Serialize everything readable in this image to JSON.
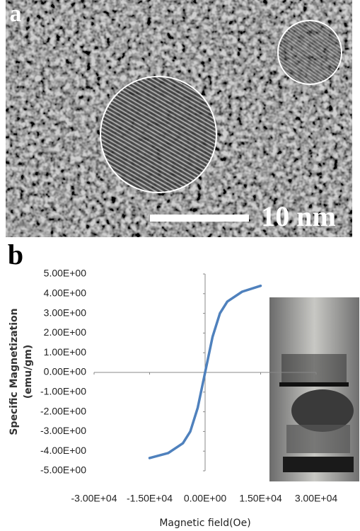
{
  "panel_labels": [
    "a",
    "b"
  ],
  "scale_bar": "10 nm",
  "chart_data": {
    "type": "line",
    "y_label": [
      "Specific Magnetization",
      "(emu/gm)"
    ],
    "x_label": "Magnetic field(Oe)",
    "x": [
      -15000,
      -10000,
      -6000,
      -4000,
      -2000,
      0,
      2000,
      4000,
      6000,
      10000,
      15000
    ],
    "series": [
      {
        "color": "#4f81bd",
        "values": [
          -4.35,
          -4.1,
          -3.6,
          -3.0,
          -1.8,
          0,
          1.8,
          3.0,
          3.6,
          4.1,
          4.4
        ]
      }
    ],
    "xlim": [
      -30000,
      30000
    ],
    "ylim": [
      -5,
      5
    ],
    "xticks": [
      {
        "value": -30000,
        "label": "-3.00E+04"
      },
      {
        "value": -15000,
        "label": "-1.50E+04"
      },
      {
        "value": 0,
        "label": "0.00E+00"
      },
      {
        "value": 15000,
        "label": "1.50E+04"
      },
      {
        "value": 30000,
        "label": "3.00E+04"
      }
    ],
    "yticks": [
      {
        "value": 5,
        "label": "5.00E+00"
      },
      {
        "value": 4,
        "label": "4.00E+00"
      },
      {
        "value": 3,
        "label": "3.00E+00"
      },
      {
        "value": 2,
        "label": "2.00E+00"
      },
      {
        "value": 1,
        "label": "1.00E+00"
      },
      {
        "value": 0,
        "label": "0.00E+00"
      },
      {
        "value": -1,
        "label": "-1.00E+00"
      },
      {
        "value": -2,
        "label": "-2.00E+00"
      },
      {
        "value": -3,
        "label": "-3.00E+00"
      },
      {
        "value": -4,
        "label": "-4.00E+00"
      },
      {
        "value": -5,
        "label": "-5.00E+00"
      }
    ]
  }
}
